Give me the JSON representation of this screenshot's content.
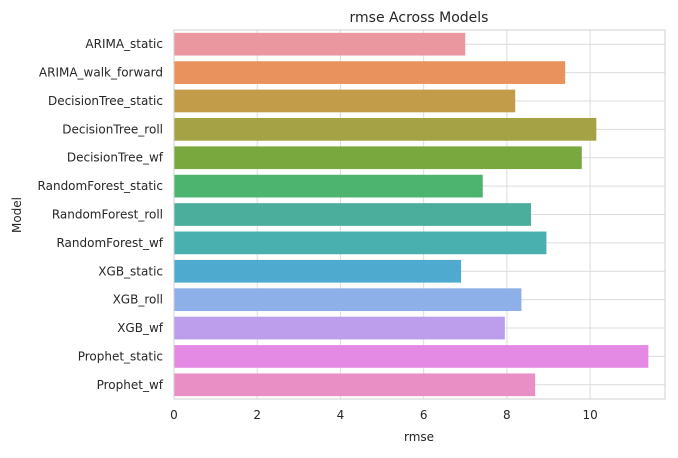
{
  "chart_data": {
    "type": "bar",
    "orientation": "horizontal",
    "title": "rmse Across Models",
    "xlabel": "rmse",
    "ylabel": "Model",
    "xlim": [
      0,
      11.8
    ],
    "xticks": [
      0,
      2,
      4,
      6,
      8,
      10
    ],
    "grid": true,
    "categories": [
      "ARIMA_static",
      "ARIMA_walk_forward",
      "DecisionTree_static",
      "DecisionTree_roll",
      "DecisionTree_wf",
      "RandomForest_static",
      "RandomForest_roll",
      "RandomForest_wf",
      "XGB_static",
      "XGB_roll",
      "XGB_wf",
      "Prophet_static",
      "Prophet_wf"
    ],
    "values": [
      7.0,
      9.4,
      8.2,
      10.15,
      9.8,
      7.42,
      8.58,
      8.95,
      6.9,
      8.35,
      7.95,
      11.4,
      8.68
    ],
    "colors": [
      "#ea97a0",
      "#e9925e",
      "#c39c49",
      "#a4a244",
      "#79a83f",
      "#4cb46e",
      "#4bae9c",
      "#49afaf",
      "#4faacf",
      "#8eb0e8",
      "#bc9eec",
      "#e48ae4",
      "#e98fc6"
    ]
  }
}
